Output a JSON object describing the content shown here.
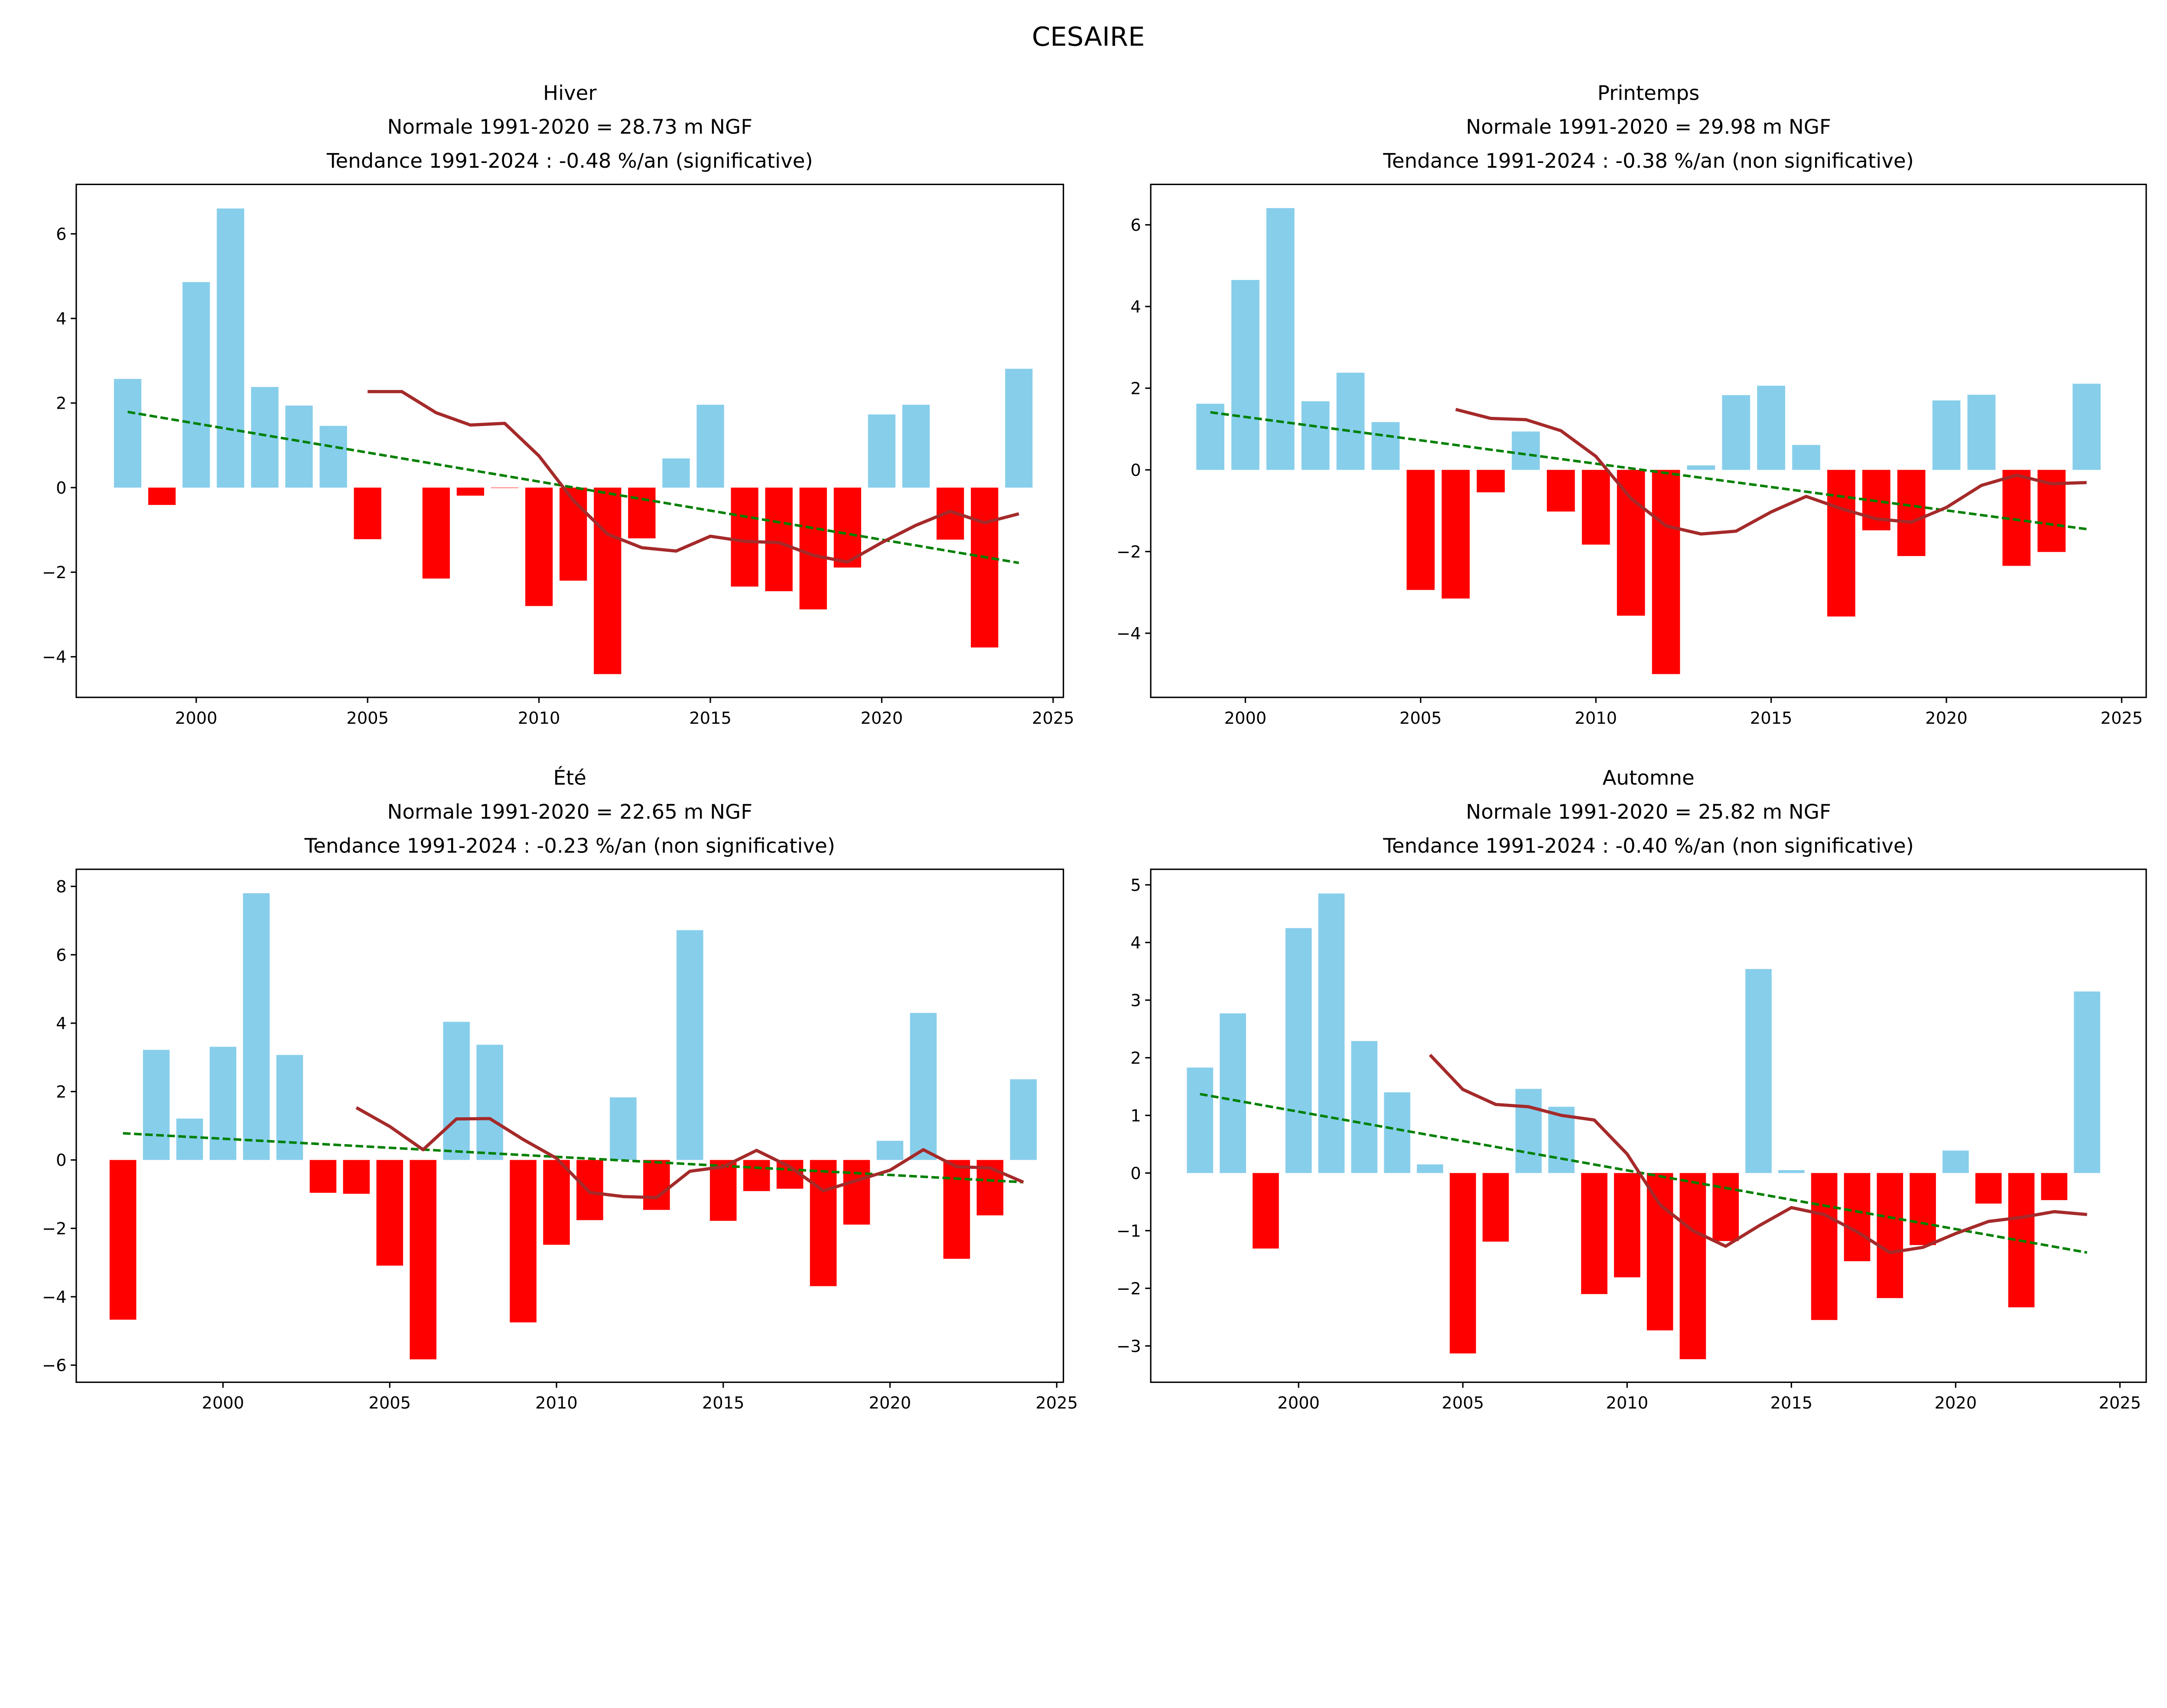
{
  "chart_data": {
    "suptitle": "CESAIRE",
    "colors": {
      "positive": "#87CEEB",
      "negative": "#FF0000",
      "moving_average": "#A52A2A",
      "trend": "#008000"
    },
    "panels": [
      {
        "type": "bar",
        "title": [
          "Hiver",
          "Normale 1991-2020 = 28.73 m NGF",
          "Tendance 1991-2024 : -0.48 %/an (significative)"
        ],
        "xlim": [
          1996.5,
          2025.3
        ],
        "ylim": [
          -4.96,
          7.17
        ],
        "xticks": [
          2000,
          2005,
          2010,
          2015,
          2020,
          2025
        ],
        "yticks": [
          -4,
          -2,
          0,
          2,
          4,
          6
        ],
        "years": [
          1998,
          1999,
          2000,
          2001,
          2002,
          2003,
          2004,
          2005,
          2006,
          2007,
          2008,
          2009,
          2010,
          2011,
          2012,
          2013,
          2014,
          2015,
          2016,
          2017,
          2018,
          2019,
          2020,
          2021,
          2022,
          2023,
          2024
        ],
        "values": [
          2.57,
          -0.41,
          4.86,
          6.6,
          2.38,
          1.94,
          1.46,
          -1.22,
          null,
          -2.15,
          -0.19,
          -0.01,
          -2.8,
          -2.2,
          -4.41,
          -1.2,
          0.69,
          1.96,
          -2.34,
          -2.45,
          -2.88,
          -1.89,
          1.73,
          1.96,
          -1.23,
          -3.78,
          2.81
        ],
        "moving_average": {
          "years": [
            2005,
            2006,
            2007,
            2008,
            2009,
            2010,
            2011,
            2012,
            2013,
            2014,
            2015,
            2016,
            2017,
            2018,
            2019,
            2020,
            2021,
            2022,
            2023,
            2024
          ],
          "values": [
            2.27,
            2.27,
            1.77,
            1.48,
            1.52,
            0.75,
            -0.3,
            -1.1,
            -1.42,
            -1.5,
            -1.15,
            -1.27,
            -1.3,
            -1.6,
            -1.76,
            -1.3,
            -0.89,
            -0.56,
            -0.83,
            -0.62
          ]
        },
        "trend": {
          "x": [
            1998,
            2024
          ],
          "y": [
            1.79,
            -1.78
          ]
        }
      },
      {
        "type": "bar",
        "title": [
          "Printemps",
          "Normale 1991-2020 = 29.98 m NGF",
          "Tendance 1991-2024 : -0.38 %/an (non significative)"
        ],
        "xlim": [
          1997.3,
          2025.7
        ],
        "ylim": [
          -5.57,
          6.99
        ],
        "xticks": [
          2000,
          2005,
          2010,
          2015,
          2020,
          2025
        ],
        "yticks": [
          -4,
          -2,
          0,
          2,
          4,
          6
        ],
        "years": [
          1999,
          2000,
          2001,
          2002,
          2003,
          2004,
          2005,
          2006,
          2007,
          2008,
          2009,
          2010,
          2011,
          2012,
          2013,
          2014,
          2015,
          2016,
          2017,
          2018,
          2019,
          2020,
          2021,
          2022,
          2023,
          2024
        ],
        "values": [
          1.62,
          4.65,
          6.41,
          1.68,
          2.38,
          1.17,
          -2.94,
          -3.15,
          -0.55,
          0.94,
          -1.02,
          -1.83,
          -3.57,
          -5.0,
          0.11,
          1.83,
          2.06,
          0.61,
          -3.59,
          -1.48,
          -2.11,
          1.7,
          1.84,
          -2.35,
          -2.01,
          2.11
        ],
        "moving_average": {
          "years": [
            2006,
            2007,
            2008,
            2009,
            2010,
            2011,
            2012,
            2013,
            2014,
            2015,
            2016,
            2017,
            2018,
            2019,
            2020,
            2021,
            2022,
            2023,
            2024
          ],
          "values": [
            1.48,
            1.26,
            1.23,
            0.96,
            0.33,
            -0.7,
            -1.37,
            -1.57,
            -1.5,
            -1.03,
            -0.65,
            -0.95,
            -1.2,
            -1.28,
            -0.92,
            -0.38,
            -0.13,
            -0.34,
            -0.31
          ]
        },
        "trend": {
          "x": [
            1999,
            2024
          ],
          "y": [
            1.41,
            -1.45
          ]
        }
      },
      {
        "type": "bar",
        "title": [
          "Été",
          "Normale 1991-2020 = 22.65 m NGF",
          "Tendance 1991-2024 : -0.23 %/an (non significative)"
        ],
        "xlim": [
          1995.6,
          2025.2
        ],
        "ylim": [
          -6.5,
          8.5
        ],
        "xticks": [
          2000,
          2005,
          2010,
          2015,
          2020,
          2025
        ],
        "yticks": [
          -6,
          -4,
          -2,
          0,
          2,
          4,
          6,
          8
        ],
        "years": [
          1997,
          1998,
          1999,
          2000,
          2001,
          2002,
          2003,
          2004,
          2005,
          2006,
          2007,
          2008,
          2009,
          2010,
          2011,
          2012,
          2013,
          2014,
          2015,
          2016,
          2017,
          2018,
          2019,
          2020,
          2021,
          2022,
          2023,
          2024
        ],
        "values": [
          -4.67,
          3.22,
          1.21,
          3.31,
          7.8,
          3.07,
          -0.96,
          -0.99,
          -3.09,
          -5.83,
          4.04,
          3.37,
          -4.75,
          -2.48,
          -1.76,
          1.83,
          -1.46,
          6.72,
          -1.78,
          -0.91,
          -0.84,
          -3.69,
          -1.89,
          0.56,
          4.3,
          -2.89,
          -1.62,
          2.36
        ],
        "moving_average": {
          "years": [
            2004,
            2005,
            2006,
            2007,
            2008,
            2009,
            2010,
            2011,
            2012,
            2013,
            2014,
            2015,
            2016,
            2017,
            2018,
            2019,
            2020,
            2021,
            2022,
            2023,
            2024
          ],
          "values": [
            1.53,
            0.98,
            0.3,
            1.2,
            1.21,
            0.6,
            0.05,
            -0.95,
            -1.07,
            -1.1,
            -0.33,
            -0.2,
            0.28,
            -0.2,
            -0.9,
            -0.6,
            -0.3,
            0.3,
            -0.2,
            -0.23,
            -0.65
          ]
        },
        "trend": {
          "x": [
            1997,
            2024
          ],
          "y": [
            0.78,
            -0.65
          ]
        }
      },
      {
        "type": "bar",
        "title": [
          "Automne",
          "Normale 1991-2020 = 25.82 m NGF",
          "Tendance 1991-2024 : -0.40 %/an (non significative)"
        ],
        "xlim": [
          1995.5,
          2025.8
        ],
        "ylim": [
          -3.63,
          5.27
        ],
        "xticks": [
          2000,
          2005,
          2010,
          2015,
          2020,
          2025
        ],
        "yticks": [
          -3,
          -2,
          -1,
          0,
          1,
          2,
          3,
          4,
          5
        ],
        "years": [
          1997,
          1998,
          1999,
          2000,
          2001,
          2002,
          2003,
          2004,
          2005,
          2006,
          2007,
          2008,
          2009,
          2010,
          2011,
          2012,
          2013,
          2014,
          2015,
          2016,
          2017,
          2018,
          2019,
          2020,
          2021,
          2022,
          2023,
          2024
        ],
        "values": [
          1.83,
          2.77,
          -1.31,
          4.25,
          4.85,
          2.29,
          1.4,
          0.15,
          -3.13,
          -1.19,
          1.46,
          1.15,
          -2.1,
          -1.81,
          -2.73,
          -3.23,
          -1.18,
          3.54,
          0.05,
          -2.55,
          -1.53,
          -2.17,
          -1.25,
          0.39,
          -0.53,
          -2.33,
          -0.47,
          3.15
        ],
        "moving_average": {
          "years": [
            2004,
            2005,
            2006,
            2007,
            2008,
            2009,
            2010,
            2011,
            2012,
            2013,
            2014,
            2015,
            2016,
            2017,
            2018,
            2019,
            2020,
            2021,
            2022,
            2023,
            2024
          ],
          "values": [
            2.05,
            1.45,
            1.19,
            1.15,
            1.0,
            0.92,
            0.33,
            -0.55,
            -1.0,
            -1.27,
            -0.92,
            -0.6,
            -0.72,
            -1.02,
            -1.38,
            -1.29,
            -1.05,
            -0.84,
            -0.77,
            -0.67,
            -0.72
          ]
        },
        "trend": {
          "x": [
            1997,
            2024
          ],
          "y": [
            1.37,
            -1.38
          ]
        }
      }
    ]
  }
}
